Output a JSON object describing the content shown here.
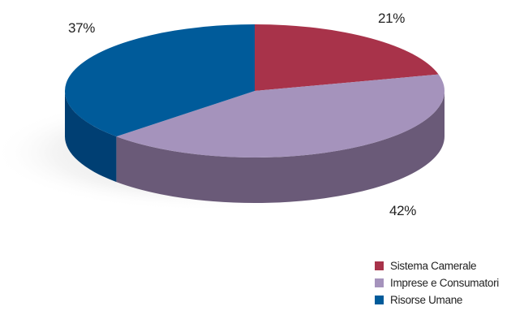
{
  "chart_data": {
    "type": "pie",
    "style": "3d",
    "categories": [
      "Sistema Camerale",
      "Imprese e Consumatori",
      "Risorse Umane"
    ],
    "values": [
      21,
      42,
      37
    ],
    "value_labels": [
      "21%",
      "42%",
      "37%"
    ],
    "unit": "%",
    "colors": [
      "#A8334A",
      "#A593BC",
      "#005B9A"
    ],
    "side_colors": [
      "#6E2233",
      "#6A5A78",
      "#003F73"
    ],
    "legend_position": "bottom-right"
  }
}
